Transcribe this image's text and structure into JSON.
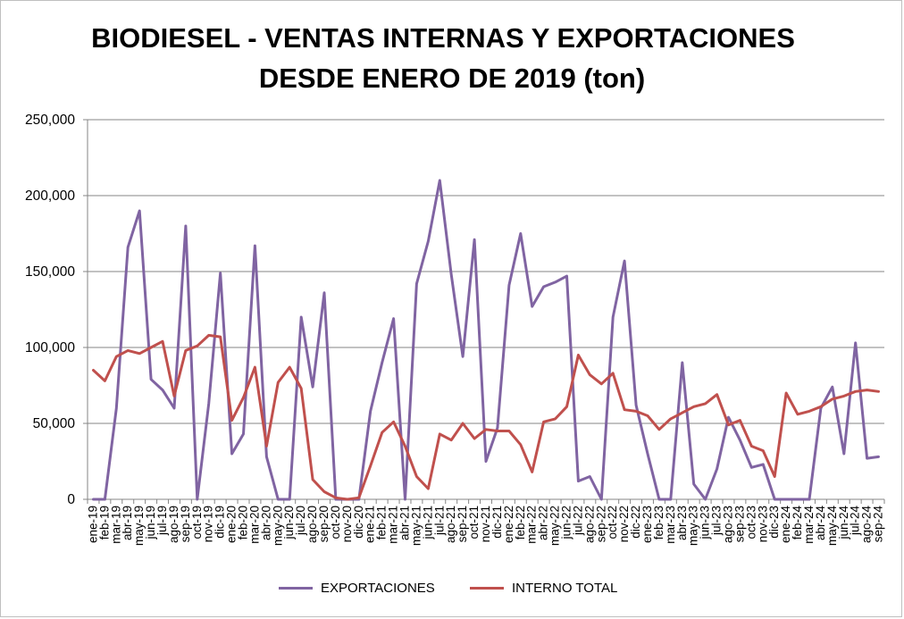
{
  "chart_data": {
    "type": "line",
    "title": "BIODIESEL - VENTAS INTERNAS Y EXPORTACIONES",
    "subtitle": "DESDE ENERO DE 2019 (ton)",
    "xlabel": "",
    "ylabel": "",
    "ylim": [
      0,
      250000
    ],
    "yticks": [
      "0",
      "50,000",
      "100,000",
      "150,000",
      "200,000",
      "250,000"
    ],
    "yticks_values": [
      0,
      50000,
      100000,
      150000,
      200000,
      250000
    ],
    "grid": true,
    "legend_position": "bottom",
    "categories": [
      "ene-19",
      "feb-19",
      "mar-19",
      "abr-19",
      "may-19",
      "jun-19",
      "jul-19",
      "ago-19",
      "sep-19",
      "oct-19",
      "nov-19",
      "dic-19",
      "ene-20",
      "feb-20",
      "mar-20",
      "abr-20",
      "may-20",
      "jun-20",
      "jul-20",
      "ago-20",
      "sep-20",
      "oct-20",
      "nov-20",
      "dic-20",
      "ene-21",
      "feb-21",
      "mar-21",
      "abr-21",
      "may-21",
      "jun-21",
      "jul-21",
      "ago-21",
      "sep-21",
      "oct-21",
      "nov-21",
      "dic-21",
      "ene-22",
      "feb-22",
      "mar-22",
      "abr-22",
      "may-22",
      "jun-22",
      "jul-22",
      "ago-22",
      "sep-22",
      "oct-22",
      "nov-22",
      "dic-22",
      "ene-23",
      "feb-23",
      "mar-23",
      "abr-23",
      "may-23",
      "jun-23",
      "jul-23",
      "ago-23",
      "sep-23",
      "oct-23",
      "nov-23",
      "dic-23",
      "ene-24",
      "feb-24",
      "mar-24",
      "abr-24",
      "may-24",
      "jun-24",
      "jul-24",
      "ago-24",
      "sep-24"
    ],
    "series": [
      {
        "name": "EXPORTACIONES",
        "color": "#8064a2",
        "values": [
          0,
          0,
          60000,
          166000,
          190000,
          79000,
          72000,
          60000,
          180000,
          0,
          63000,
          149000,
          30000,
          43000,
          167000,
          28000,
          0,
          0,
          120000,
          74000,
          136000,
          0,
          0,
          0,
          58000,
          90000,
          119000,
          0,
          142000,
          170000,
          210000,
          148000,
          94000,
          171000,
          25000,
          47000,
          141000,
          175000,
          127000,
          140000,
          143000,
          147000,
          12000,
          15000,
          0,
          120000,
          157000,
          62000,
          30000,
          0,
          0,
          90000,
          10000,
          0,
          20000,
          54000,
          39000,
          21000,
          23000,
          0,
          0,
          0,
          0,
          60000,
          74000,
          30000,
          103000,
          27000,
          28000
        ]
      },
      {
        "name": "INTERNO TOTAL",
        "color": "#c0504d",
        "values": [
          85000,
          78000,
          94000,
          98000,
          96000,
          100000,
          104000,
          68000,
          98000,
          101000,
          108000,
          107000,
          52000,
          67000,
          87000,
          35000,
          77000,
          87000,
          73000,
          13000,
          5000,
          1000,
          0,
          1000,
          22000,
          44000,
          51000,
          35000,
          15000,
          7000,
          43000,
          39000,
          50000,
          40000,
          46000,
          45000,
          45000,
          36000,
          18000,
          51000,
          53000,
          61000,
          95000,
          82000,
          76000,
          83000,
          59000,
          58000,
          55000,
          46000,
          53000,
          57000,
          61000,
          63000,
          69000,
          49000,
          52000,
          35000,
          32000,
          15000,
          70000,
          56000,
          58000,
          61000,
          66000,
          68000,
          71000,
          72000,
          71000
        ]
      }
    ]
  }
}
